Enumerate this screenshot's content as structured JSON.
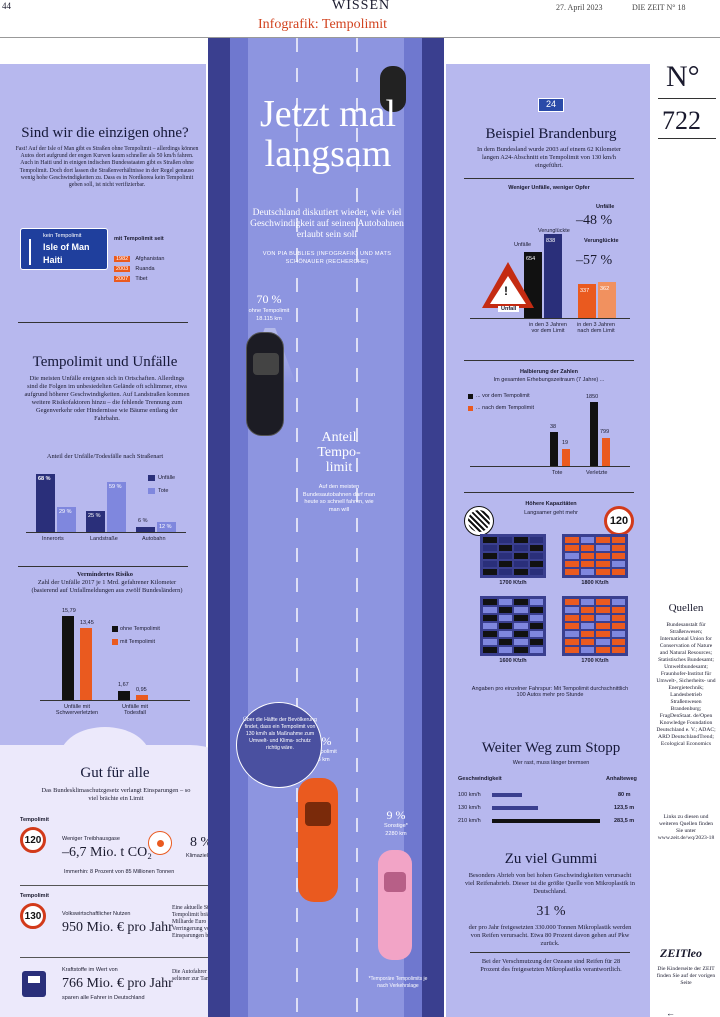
{
  "header": {
    "page": "44",
    "section": "WISSEN",
    "date": "27. April 2023",
    "issue": "DIE ZEIT N° 18",
    "title": "Infografik: Tempolimit"
  },
  "center": {
    "headline": "Jetzt mal langsam",
    "subline": "Deutschland diskutiert wieder, wie viel Geschwindigkeit auf seinen Autobahnen erlaubt sein soll",
    "byline": "VON PIA BUBLIES (INFOGRAFIK) UND MATS SCHÖNAUER (RECHERCHE)",
    "car1_pct": "70 %",
    "car1_label": "ohne Tempolimit",
    "car1_km": "18.115 km",
    "anteil": "Anteil Tempo- limit",
    "anteil_text": "Auf den meisten Bundesautobahnen darf man heute so schnell fahren, wie man will",
    "car2_pct": "21 %",
    "car2_label": "mit Tempolimit",
    "car2_km": "5363 km",
    "circle_text": "Über die Hälfte der Bevölkerung findet, dass ein Tempolimit von 130 km/h als Maßnahme zum Umwelt- und Klima- schutz richtig wäre.",
    "car3_pct": "9 %",
    "car3_label": "Sonstige*",
    "car3_km": "2280 km",
    "footnote": "*Temporäre Tempolimits je nach Verkehrslage"
  },
  "left": {
    "q_title": "Sind wir die einzigen ohne?",
    "q_text": "Fast! Auf der Isle of Man gibt es Straßen ohne Tempolimit – allerdings können Autos dort aufgrund der engen Kurven kaum schneller als 50 km/h fahren. Auch in Haiti und in einigen indischen Bundesstaaten gibt es Straßen ohne Tempolimit. Doch dort lassen die Straßenverhältnisse in der Regel genauso wenig hohe Geschwindigkeiten zu. Dass es in Nordkorea kein Tempolimit geben soll, ist nicht verifizierbar.",
    "sign_head": "kein Tempolimit",
    "sign_l1": "Isle of Man",
    "sign_l2": "Haiti",
    "since_head": "mit Tempolimit seit",
    "since": [
      {
        "year": "1982",
        "country": "Afghanistan"
      },
      {
        "year": "2003",
        "country": "Ruanda"
      },
      {
        "year": "2007",
        "country": "Tibet"
      }
    ],
    "u_title": "Tempolimit und Unfälle",
    "u_text": "Die meisten Unfälle ereignen sich in Ortschaften. Allerdings sind die Folgen im unbesiedelten Gelände oft schlimmer, etwa aufgrund höherer Geschwindigkeiten. Auf Landstraßen kommen weitere Risikofaktoren hinzu – die fehlende Trennung zum Gegenverkehr oder Hindernisse wie Bäume entlang der Fahrbahn.",
    "u_chart_title": "Anteil der Unfälle/Todesfälle nach Straßenart",
    "legend_unf": "Unfälle",
    "legend_tote": "Tote",
    "u_cats": [
      "Innerorts",
      "Landstraße",
      "Autobahn"
    ],
    "u_unf": [
      "68 %",
      "25 %",
      "6 %"
    ],
    "u_tote": [
      "29 %",
      "59 %",
      "12 %"
    ],
    "r_title": "Vermindertes Risiko",
    "r_sub": "Zahl der Unfälle 2017 je 1 Mrd. gefahrener Kilometer (basierend auf Unfallmeldungen aus zwölf Bundesländern)",
    "r_legend1": "ohne Tempolimit",
    "r_legend2": "mit Tempolimit",
    "r_cats": [
      "Unfälle mit Schwerverletzten",
      "Unfälle mit Todesfall"
    ],
    "r_vals": [
      "15,79",
      "13,45",
      "1,67",
      "0,95"
    ],
    "g_title": "Gut für alle",
    "g_sub": "Das Bundesklimaschutzgesetz verlangt Einsparungen – so viel brächte ein Limit",
    "g1_head": "Tempolimit",
    "g1_sign": "120",
    "g1_small": "Weniger Treibhausgase",
    "g1_big": "–6,7 Mio. t CO₂",
    "g1_pct": "8 %",
    "g1_ziel": "Klimaziel: –85 Mio. t CO₂",
    "g1_note": "Immerhin: 8 Prozent von 85 Millionen Tonnen",
    "g2_head": "Tempolimit",
    "g2_sign": "130",
    "g2_small": "Volkswirtschaftlicher Nutzen",
    "g2_big": "950 Mio. € pro Jahr",
    "g2_text": "Eine aktuelle Studie zeigt: Das Tempolimit brächte fast eine Milliarde Euro ein – etwa durch Verringerung von Emissionen und Einsparungen bei der Infrastruktur",
    "g3_small": "Kraftstoffe im Wert von",
    "g3_big": "766 Mio. € pro Jahr",
    "g3_sub": "sparen alle Fahrer in Deutschland",
    "g3_text": "Die Autofahrer müssten seltener zur Tankstelle"
  },
  "right": {
    "badge": "24",
    "b_title": "Beispiel Brandenburg",
    "b_text": "In dem Bundesland wurde 2003 auf einem 62 Kilometer langen A24-Abschnitt ein Tempolimit von 130 km/h eingeführt.",
    "b_chart_title": "Weniger Unfälle, weniger Opfer",
    "lbl_unf": "Unfälle",
    "lbl_verl": "Verunglückte",
    "pct_unf": "–48 %",
    "pct_verl": "–57 %",
    "v654": "654",
    "v838": "838",
    "v337": "337",
    "v362": "362",
    "unfall_sign": "Unfall",
    "cap_before": "in den 3 Jahren vor dem Limit",
    "cap_after": "in den 3 Jahren nach dem Limit",
    "h_title": "Halbierung der Zahlen",
    "h_sub": "Im gesamten Erhebungszeitraum (7 Jahre) ...",
    "h_leg1": "... vor dem Tempolimit",
    "h_leg2": "... nach dem Tempolimit",
    "h_cats": [
      "Tote",
      "Verletzte"
    ],
    "h_vals": [
      "38",
      "19",
      "1850",
      "799"
    ],
    "k_title": "Höhere Kapazitäten",
    "k_sub": "Langsamer geht mehr",
    "k_sign": "120",
    "k_vals": [
      "1700 Kfz/h",
      "1800 Kfz/h",
      "1600 Kfz/h",
      "1700 Kfz/h"
    ],
    "k_note": "Angaben pro einzelner Fahrspur: Mit Tempolimit durchschnittlich 100 Autos mehr pro Stunde",
    "w_title": "Weiter Weg zum Stopp",
    "w_sub": "Wer rast, muss länger bremsen",
    "w_h1": "Geschwindigkeit",
    "w_h2": "Anhalteweg",
    "w_rows": [
      {
        "speed": "100 km/h",
        "dist": "80 m"
      },
      {
        "speed": "130 km/h",
        "dist": "123,5 m"
      },
      {
        "speed": "210 km/h",
        "dist": "283,5 m"
      }
    ],
    "z_title": "Zu viel Gummi",
    "z_text": "Besonders Abrieb von bei hohen Geschwindigkeiten verursacht viel Reifenabrieb. Dieser ist die größte Quelle von Mikroplastik in Deutschland.",
    "z_pct": "31 %",
    "z_text2": "der pro Jahr freigesetzten 330.000 Tonnen Mikroplastik werden von Reifen verursacht. Etwa 80 Prozent davon gehen auf Pkw zurück.",
    "z_text3": "Bei der Verschmutzung der Ozeane sind Reifen für 28 Prozent des freigesetzten Mikroplastiks verantwortlich."
  },
  "side": {
    "no": "N°",
    "num": "722",
    "q_head": "Quellen",
    "q_text": "Bundesanstalt für Straßenwesen; International Union for Conservation of Nature and Natural Resources; Statistisches Bundesamt; Umweltbundesamt; Fraunhofer-Institut für Umwelt-, Sicherheits- und Energietechnik; Landesbetrieb Straßenwesen Brandenburg; FragDenStaat. de/Open Knowledge Foundation Deutschland e. V.; ADAC; ARD DeutschlandTrend; Ecological Economics",
    "links": "Links zu diesen und weiteren Quellen finden Sie unter www.zeit.de/wq/2023-18",
    "logo": "ZEITleo",
    "leo_text": "Die Kinderseite der ZEIT finden Sie auf der vorigen Seite"
  }
}
